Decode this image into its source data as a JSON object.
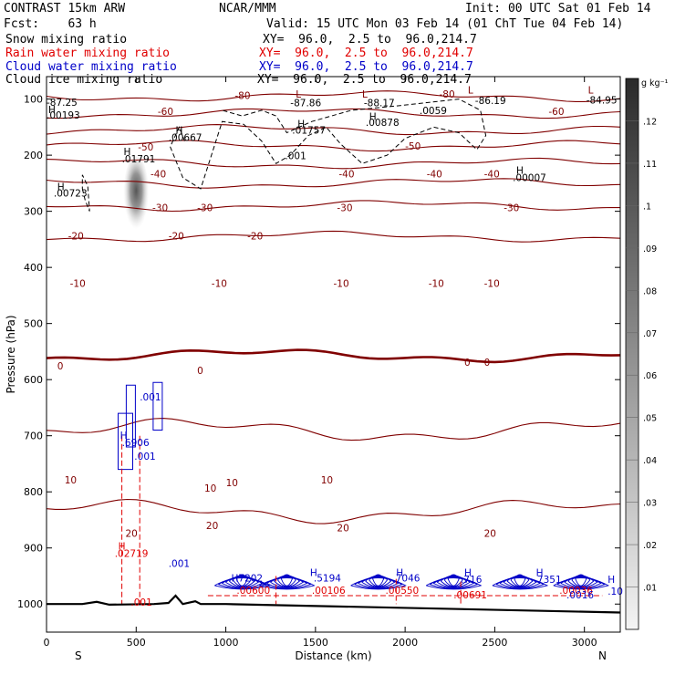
{
  "header": {
    "model": "CONTRAST 15km ARW",
    "org": "NCAR/MMM",
    "init": "Init: 00 UTC Sat 01 Feb 14",
    "fcst": "Fcst:    63 h",
    "valid": "Valid: 15 UTC Mon 03 Feb 14 (01 ChT Tue 04 Feb 14)",
    "fields": [
      {
        "label": "Snow mixing ratio",
        "xy": "XY=  96.0,  2.5 to  96.0,214.7",
        "color": "#000000"
      },
      {
        "label": "Rain water mixing ratio",
        "xy": "XY=  96.0,  2.5 to  96.0,214.7",
        "color": "#e00000"
      },
      {
        "label": "Cloud water mixing ratio",
        "xy": "XY=  96.0,  2.5 to  96.0,214.7",
        "color": "#0000c8"
      },
      {
        "label": "Cloud ice mixing ratio",
        "xy": "XY=  96.0,  2.5 to  96.0,214.7",
        "color": "#000000"
      }
    ]
  },
  "chart_data": {
    "type": "contour-cross-section",
    "xlabel": "Distance (km)",
    "ylabel": "Pressure (hPa)",
    "xlim": [
      0,
      3200
    ],
    "ylim": [
      1050,
      60
    ],
    "x_ticks": [
      0,
      500,
      1000,
      1500,
      2000,
      2500,
      3000
    ],
    "y_ticks": [
      100,
      200,
      300,
      400,
      500,
      600,
      700,
      800,
      900,
      1000
    ],
    "endpoints": {
      "left": "S",
      "right": "N"
    },
    "colorbar": {
      "unit": "g kg⁻¹",
      "ticks": [
        ".12",
        ".11",
        ".1",
        ".09",
        ".08",
        ".07",
        ".06",
        ".05",
        ".04",
        ".03",
        ".02",
        ".01"
      ],
      "values": [
        0.12,
        0.11,
        0.1,
        0.09,
        0.08,
        0.07,
        0.06,
        0.05,
        0.04,
        0.03,
        0.02,
        0.01
      ]
    },
    "temperature_isotherms_c": [
      {
        "value": -80,
        "p": 95
      },
      {
        "value": -70,
        "p": 125
      },
      {
        "value": -60,
        "p": 155
      },
      {
        "value": -50,
        "p": 183
      },
      {
        "value": -40,
        "p": 215
      },
      {
        "value": -30,
        "p": 250
      },
      {
        "value": -20,
        "p": 290
      },
      {
        "value": -10,
        "p": 345
      },
      {
        "value": 0,
        "p": 557
      },
      {
        "value": 10,
        "p": 690
      },
      {
        "value": 20,
        "p": 835
      }
    ],
    "temperature_labels": [
      {
        "text": "-80",
        "x": 1050,
        "p": 100
      },
      {
        "text": "-80",
        "x": 2190,
        "p": 97
      },
      {
        "text": "-60",
        "x": 620,
        "p": 128
      },
      {
        "text": "-60",
        "x": 2800,
        "p": 128
      },
      {
        "text": "-50",
        "x": 510,
        "p": 192
      },
      {
        "text": "-50",
        "x": 2000,
        "p": 190
      },
      {
        "text": "-40",
        "x": 580,
        "p": 240
      },
      {
        "text": "-40",
        "x": 1630,
        "p": 240
      },
      {
        "text": "-40",
        "x": 2120,
        "p": 240
      },
      {
        "text": "-40",
        "x": 2440,
        "p": 240
      },
      {
        "text": "-30",
        "x": 590,
        "p": 300
      },
      {
        "text": "-30",
        "x": 840,
        "p": 300
      },
      {
        "text": "-30",
        "x": 1620,
        "p": 300
      },
      {
        "text": "-30",
        "x": 2550,
        "p": 300
      },
      {
        "text": "-20",
        "x": 120,
        "p": 350
      },
      {
        "text": "-20",
        "x": 680,
        "p": 350
      },
      {
        "text": "-20",
        "x": 1120,
        "p": 350
      },
      {
        "text": "-10",
        "x": 130,
        "p": 435
      },
      {
        "text": "-10",
        "x": 920,
        "p": 435
      },
      {
        "text": "-10",
        "x": 1600,
        "p": 435
      },
      {
        "text": "-10",
        "x": 2130,
        "p": 435
      },
      {
        "text": "-10",
        "x": 2440,
        "p": 435
      },
      {
        "text": "0",
        "x": 60,
        "p": 582
      },
      {
        "text": "0",
        "x": 840,
        "p": 590
      },
      {
        "text": "0",
        "x": 2330,
        "p": 575
      },
      {
        "text": "0",
        "x": 2440,
        "p": 575
      },
      {
        "text": "10",
        "x": 100,
        "p": 785
      },
      {
        "text": "10",
        "x": 880,
        "p": 800
      },
      {
        "text": "10",
        "x": 1000,
        "p": 790
      },
      {
        "text": "10",
        "x": 1530,
        "p": 785
      },
      {
        "text": "20",
        "x": 440,
        "p": 880
      },
      {
        "text": "20",
        "x": 890,
        "p": 866
      },
      {
        "text": "20",
        "x": 1620,
        "p": 870
      },
      {
        "text": "20",
        "x": 2440,
        "p": 880
      }
    ],
    "extrema_labels": [
      {
        "text": "-87.25",
        "color": "#000000",
        "x": 0,
        "p": 112
      },
      {
        "text": "H",
        "color": "#000000",
        "x": 10,
        "p": 125
      },
      {
        "text": ".00193",
        "color": "#000000",
        "x": 0,
        "p": 135
      },
      {
        "text": "L",
        "color": "#800000",
        "x": 1390,
        "p": 97
      },
      {
        "text": "-87.86",
        "color": "#000000",
        "x": 1360,
        "p": 113
      },
      {
        "text": "L",
        "color": "#800000",
        "x": 1760,
        "p": 97
      },
      {
        "text": "-88.17",
        "color": "#000000",
        "x": 1770,
        "p": 113
      },
      {
        "text": ".0059",
        "color": "#000000",
        "x": 2080,
        "p": 127
      },
      {
        "text": "L",
        "color": "#800000",
        "x": 2350,
        "p": 90
      },
      {
        "text": "-86.19",
        "color": "#000000",
        "x": 2390,
        "p": 109
      },
      {
        "text": "L",
        "color": "#800000",
        "x": 3020,
        "p": 90
      },
      {
        "text": "-84.95",
        "color": "#000000",
        "x": 3010,
        "p": 108
      },
      {
        "text": "H",
        "color": "#000000",
        "x": 720,
        "p": 162
      },
      {
        "text": ".00667",
        "color": "#000000",
        "x": 680,
        "p": 175
      },
      {
        "text": "H",
        "color": "#000000",
        "x": 1400,
        "p": 150
      },
      {
        "text": ".01757",
        "color": "#000000",
        "x": 1370,
        "p": 162
      },
      {
        "text": ".001",
        "color": "#000000",
        "x": 1330,
        "p": 207
      },
      {
        "text": "H",
        "color": "#000000",
        "x": 1800,
        "p": 137
      },
      {
        "text": ".00878",
        "color": "#000000",
        "x": 1780,
        "p": 148
      },
      {
        "text": "H",
        "color": "#000000",
        "x": 430,
        "p": 200
      },
      {
        "text": ".01791",
        "color": "#000000",
        "x": 420,
        "p": 213
      },
      {
        "text": "H",
        "color": "#000000",
        "x": 60,
        "p": 262
      },
      {
        "text": ".00723",
        "color": "#000000",
        "x": 40,
        "p": 274
      },
      {
        "text": "H",
        "color": "#000000",
        "x": 2620,
        "p": 233
      },
      {
        "text": ".00007",
        "color": "#000000",
        "x": 2600,
        "p": 246
      },
      {
        "text": "H",
        "color": "#0000c8",
        "x": 410,
        "p": 705
      },
      {
        "text": ".6906",
        "color": "#0000c8",
        "x": 420,
        "p": 718
      },
      {
        "text": ".001",
        "color": "#0000c8",
        "x": 520,
        "p": 637
      },
      {
        "text": ".001",
        "color": "#0000c8",
        "x": 490,
        "p": 743
      },
      {
        "text": "H",
        "color": "#e00000",
        "x": 400,
        "p": 903
      },
      {
        "text": ".02719",
        "color": "#e00000",
        "x": 380,
        "p": 916
      },
      {
        "text": ".001",
        "color": "#e00000",
        "x": 470,
        "p": 1003
      },
      {
        "text": ".001",
        "color": "#0000c8",
        "x": 680,
        "p": 934
      },
      {
        "text": "H7202",
        "color": "#0000c8",
        "x": 1030,
        "p": 960
      },
      {
        "text": ".00600",
        "color": "#e00000",
        "x": 1060,
        "p": 982
      },
      {
        "text": "H",
        "color": "#0000c8",
        "x": 1470,
        "p": 950
      },
      {
        "text": ".5194",
        "color": "#0000c8",
        "x": 1490,
        "p": 960
      },
      {
        "text": ".00106",
        "color": "#e00000",
        "x": 1480,
        "p": 982
      },
      {
        "text": "H",
        "color": "#0000c8",
        "x": 1950,
        "p": 950
      },
      {
        "text": ".7046",
        "color": "#0000c8",
        "x": 1930,
        "p": 960
      },
      {
        "text": ".00550",
        "color": "#e00000",
        "x": 1890,
        "p": 982
      },
      {
        "text": "H",
        "color": "#0000c8",
        "x": 2330,
        "p": 950
      },
      {
        "text": ".716",
        "color": "#0000c8",
        "x": 2310,
        "p": 962
      },
      {
        "text": ".00691",
        "color": "#e00000",
        "x": 2270,
        "p": 990
      },
      {
        "text": "H",
        "color": "#0000c8",
        "x": 2730,
        "p": 950
      },
      {
        "text": ".7351",
        "color": "#0000c8",
        "x": 2720,
        "p": 962
      },
      {
        "text": ".00036",
        "color": "#e00000",
        "x": 2860,
        "p": 982
      },
      {
        "text": ".0016",
        "color": "#0000c8",
        "x": 2900,
        "p": 990
      },
      {
        "text": "H",
        "color": "#0000c8",
        "x": 3130,
        "p": 962
      },
      {
        "text": ".10",
        "color": "#0000c8",
        "x": 3130,
        "p": 983
      }
    ]
  }
}
